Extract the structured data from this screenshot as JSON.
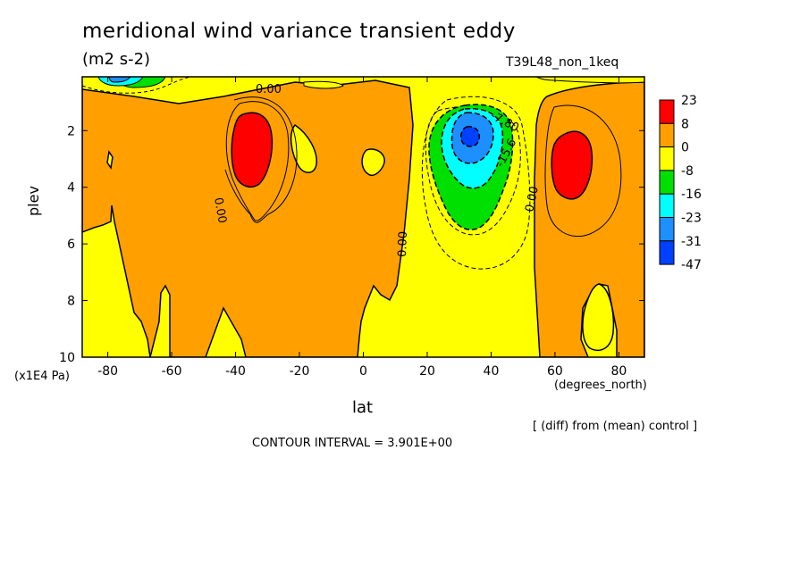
{
  "title": "meridional wind variance transient eddy",
  "units": "(m2 s-2)",
  "run_name": "T39L48_non_1keq",
  "note": "[ (diff) from (mean) control ]",
  "contour_interval_text": "CONTOUR INTERVAL = 3.901E+00",
  "contour_labels": [
    "0.00",
    "0.00",
    "0.00",
    "0.00",
    "-7.80",
    "-15.6"
  ],
  "colors": {
    "red": "#ff0000",
    "orange": "#ffa000",
    "yellow": "#ffff00",
    "green": "#00e000",
    "cyan": "#00ffff",
    "blue_light": "#1e8fff",
    "blue": "#0040ff"
  },
  "chart_data": {
    "type": "heatmap",
    "xlabel": "lat",
    "ylabel": "plev",
    "xunit": "(degrees_north)",
    "yunit": "(x1E4 Pa)",
    "xlim": [
      -88,
      88
    ],
    "ylim": [
      10,
      0.1
    ],
    "xticks": [
      "-80",
      "-60",
      "-40",
      "-20",
      "0",
      "20",
      "40",
      "60",
      "80"
    ],
    "xtick_values": [
      -80,
      -60,
      -40,
      -20,
      0,
      20,
      40,
      60,
      80
    ],
    "yticks": [
      "2",
      "4",
      "6",
      "8",
      "10"
    ],
    "ytick_values": [
      2,
      4,
      6,
      8,
      10
    ],
    "colorbar_labels": [
      "23",
      "8",
      "0",
      "-8",
      "-16",
      "-23",
      "-31",
      "-47"
    ],
    "colorbar_colors": [
      "#ff0000",
      "#ffa000",
      "#ffff00",
      "#00e000",
      "#00ffff",
      "#1e8fff",
      "#0040ff"
    ],
    "contour_interval": 3.901
  }
}
